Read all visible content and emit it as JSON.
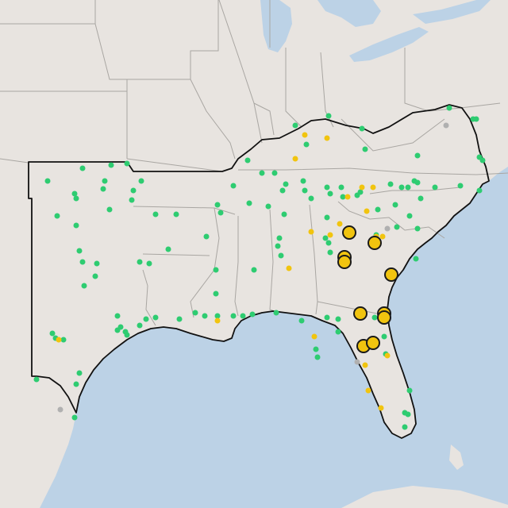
{
  "map": {
    "colors": {
      "water": "#bcd2e6",
      "land": "#e8e4e0",
      "state_border": "#a9a6a2",
      "region_outline": "#111111",
      "status_green": "#2ecc71",
      "status_yellow": "#f1c40f",
      "status_gray": "#b0b0b0",
      "large_marker_stroke": "#1a1a1a"
    },
    "legend": [],
    "marker_groups": [
      "green-station-markers",
      "yellow-station-markers",
      "gray-station-markers",
      "large-yellow-markers"
    ]
  }
}
